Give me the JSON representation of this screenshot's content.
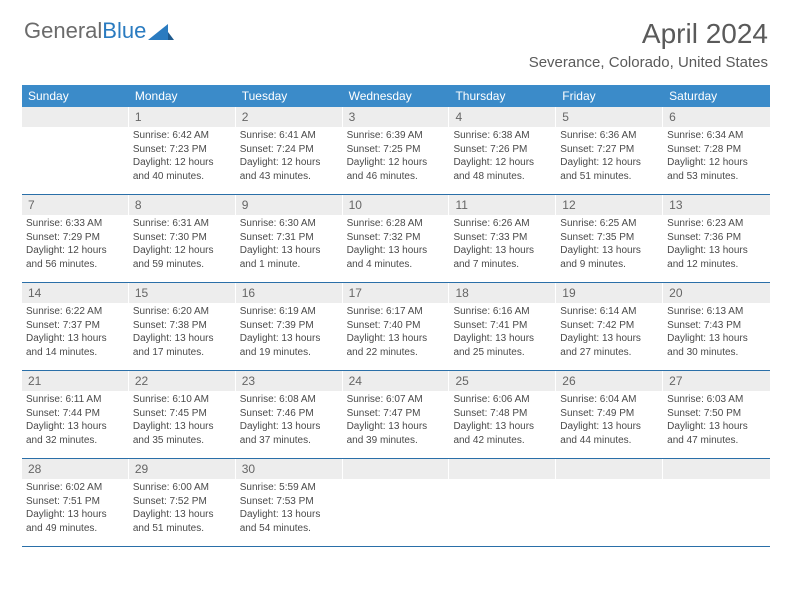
{
  "brand": {
    "part1": "General",
    "part2": "Blue"
  },
  "title": "April 2024",
  "location": "Severance, Colorado, United States",
  "weekdays": [
    "Sunday",
    "Monday",
    "Tuesday",
    "Wednesday",
    "Thursday",
    "Friday",
    "Saturday"
  ],
  "colors": {
    "header_bar": "#3b8bc9",
    "day_num_bg": "#ededed",
    "row_border": "#2a6fa8",
    "text": "#4a4a4a",
    "title": "#5a5a5a"
  },
  "weeks": [
    [
      {
        "n": "",
        "empty": true
      },
      {
        "n": "1",
        "sunrise": "6:42 AM",
        "sunset": "7:23 PM",
        "daylight": "12 hours and 40 minutes."
      },
      {
        "n": "2",
        "sunrise": "6:41 AM",
        "sunset": "7:24 PM",
        "daylight": "12 hours and 43 minutes."
      },
      {
        "n": "3",
        "sunrise": "6:39 AM",
        "sunset": "7:25 PM",
        "daylight": "12 hours and 46 minutes."
      },
      {
        "n": "4",
        "sunrise": "6:38 AM",
        "sunset": "7:26 PM",
        "daylight": "12 hours and 48 minutes."
      },
      {
        "n": "5",
        "sunrise": "6:36 AM",
        "sunset": "7:27 PM",
        "daylight": "12 hours and 51 minutes."
      },
      {
        "n": "6",
        "sunrise": "6:34 AM",
        "sunset": "7:28 PM",
        "daylight": "12 hours and 53 minutes."
      }
    ],
    [
      {
        "n": "7",
        "sunrise": "6:33 AM",
        "sunset": "7:29 PM",
        "daylight": "12 hours and 56 minutes."
      },
      {
        "n": "8",
        "sunrise": "6:31 AM",
        "sunset": "7:30 PM",
        "daylight": "12 hours and 59 minutes."
      },
      {
        "n": "9",
        "sunrise": "6:30 AM",
        "sunset": "7:31 PM",
        "daylight": "13 hours and 1 minute."
      },
      {
        "n": "10",
        "sunrise": "6:28 AM",
        "sunset": "7:32 PM",
        "daylight": "13 hours and 4 minutes."
      },
      {
        "n": "11",
        "sunrise": "6:26 AM",
        "sunset": "7:33 PM",
        "daylight": "13 hours and 7 minutes."
      },
      {
        "n": "12",
        "sunrise": "6:25 AM",
        "sunset": "7:35 PM",
        "daylight": "13 hours and 9 minutes."
      },
      {
        "n": "13",
        "sunrise": "6:23 AM",
        "sunset": "7:36 PM",
        "daylight": "13 hours and 12 minutes."
      }
    ],
    [
      {
        "n": "14",
        "sunrise": "6:22 AM",
        "sunset": "7:37 PM",
        "daylight": "13 hours and 14 minutes."
      },
      {
        "n": "15",
        "sunrise": "6:20 AM",
        "sunset": "7:38 PM",
        "daylight": "13 hours and 17 minutes."
      },
      {
        "n": "16",
        "sunrise": "6:19 AM",
        "sunset": "7:39 PM",
        "daylight": "13 hours and 19 minutes."
      },
      {
        "n": "17",
        "sunrise": "6:17 AM",
        "sunset": "7:40 PM",
        "daylight": "13 hours and 22 minutes."
      },
      {
        "n": "18",
        "sunrise": "6:16 AM",
        "sunset": "7:41 PM",
        "daylight": "13 hours and 25 minutes."
      },
      {
        "n": "19",
        "sunrise": "6:14 AM",
        "sunset": "7:42 PM",
        "daylight": "13 hours and 27 minutes."
      },
      {
        "n": "20",
        "sunrise": "6:13 AM",
        "sunset": "7:43 PM",
        "daylight": "13 hours and 30 minutes."
      }
    ],
    [
      {
        "n": "21",
        "sunrise": "6:11 AM",
        "sunset": "7:44 PM",
        "daylight": "13 hours and 32 minutes."
      },
      {
        "n": "22",
        "sunrise": "6:10 AM",
        "sunset": "7:45 PM",
        "daylight": "13 hours and 35 minutes."
      },
      {
        "n": "23",
        "sunrise": "6:08 AM",
        "sunset": "7:46 PM",
        "daylight": "13 hours and 37 minutes."
      },
      {
        "n": "24",
        "sunrise": "6:07 AM",
        "sunset": "7:47 PM",
        "daylight": "13 hours and 39 minutes."
      },
      {
        "n": "25",
        "sunrise": "6:06 AM",
        "sunset": "7:48 PM",
        "daylight": "13 hours and 42 minutes."
      },
      {
        "n": "26",
        "sunrise": "6:04 AM",
        "sunset": "7:49 PM",
        "daylight": "13 hours and 44 minutes."
      },
      {
        "n": "27",
        "sunrise": "6:03 AM",
        "sunset": "7:50 PM",
        "daylight": "13 hours and 47 minutes."
      }
    ],
    [
      {
        "n": "28",
        "sunrise": "6:02 AM",
        "sunset": "7:51 PM",
        "daylight": "13 hours and 49 minutes."
      },
      {
        "n": "29",
        "sunrise": "6:00 AM",
        "sunset": "7:52 PM",
        "daylight": "13 hours and 51 minutes."
      },
      {
        "n": "30",
        "sunrise": "5:59 AM",
        "sunset": "7:53 PM",
        "daylight": "13 hours and 54 minutes."
      },
      {
        "n": "",
        "empty": true
      },
      {
        "n": "",
        "empty": true
      },
      {
        "n": "",
        "empty": true
      },
      {
        "n": "",
        "empty": true
      }
    ]
  ],
  "labels": {
    "sunrise": "Sunrise:",
    "sunset": "Sunset:",
    "daylight": "Daylight:"
  }
}
